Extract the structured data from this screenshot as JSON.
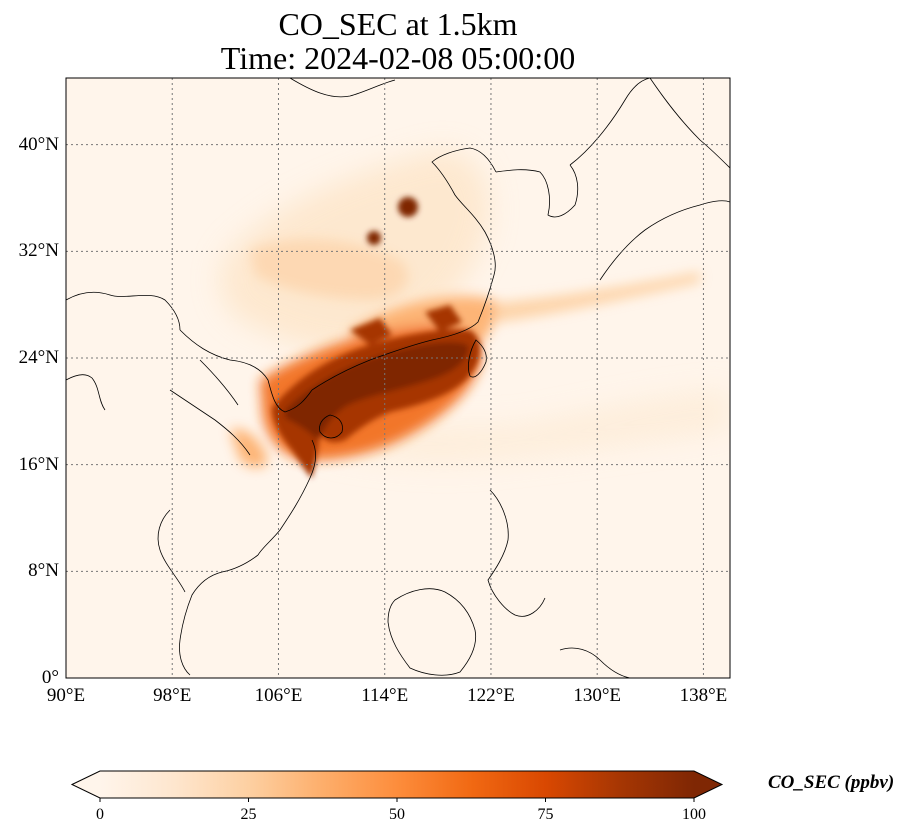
{
  "title_line1": "CO_SEC at 1.5km",
  "title_line2": "Time: 2024-02-08 05:00:00",
  "map": {
    "variable": "CO_SEC",
    "level": "1.5km",
    "lon_range": [
      90,
      140
    ],
    "lat_range": [
      0,
      45
    ],
    "lon_ticks": [
      {
        "value": 90,
        "label": "90°E"
      },
      {
        "value": 98,
        "label": "98°E"
      },
      {
        "value": 106,
        "label": "106°E"
      },
      {
        "value": 114,
        "label": "114°E"
      },
      {
        "value": 122,
        "label": "122°E"
      },
      {
        "value": 130,
        "label": "130°E"
      },
      {
        "value": 138,
        "label": "138°E"
      }
    ],
    "lat_ticks": [
      {
        "value": 0,
        "label": "0°"
      },
      {
        "value": 8,
        "label": "8°N"
      },
      {
        "value": 16,
        "label": "16°N"
      },
      {
        "value": 24,
        "label": "24°N"
      },
      {
        "value": 32,
        "label": "32°N"
      },
      {
        "value": 40,
        "label": "40°N"
      }
    ],
    "gridlines": true,
    "colormap": "OrRd",
    "background_color": "#fff5eb"
  },
  "colorbar": {
    "label": "CO_SEC (ppbv)",
    "min": 0,
    "max": 100,
    "extend": "both",
    "ticks": [
      {
        "value": 0,
        "label": "0"
      },
      {
        "value": 25,
        "label": "25"
      },
      {
        "value": 50,
        "label": "50"
      },
      {
        "value": 75,
        "label": "75"
      },
      {
        "value": 100,
        "label": "100"
      }
    ],
    "colors": [
      "#fff5eb",
      "#fee6ce",
      "#fdd0a2",
      "#fdae6b",
      "#fd8d3c",
      "#f16913",
      "#d94801",
      "#a63603",
      "#7f2704"
    ]
  }
}
